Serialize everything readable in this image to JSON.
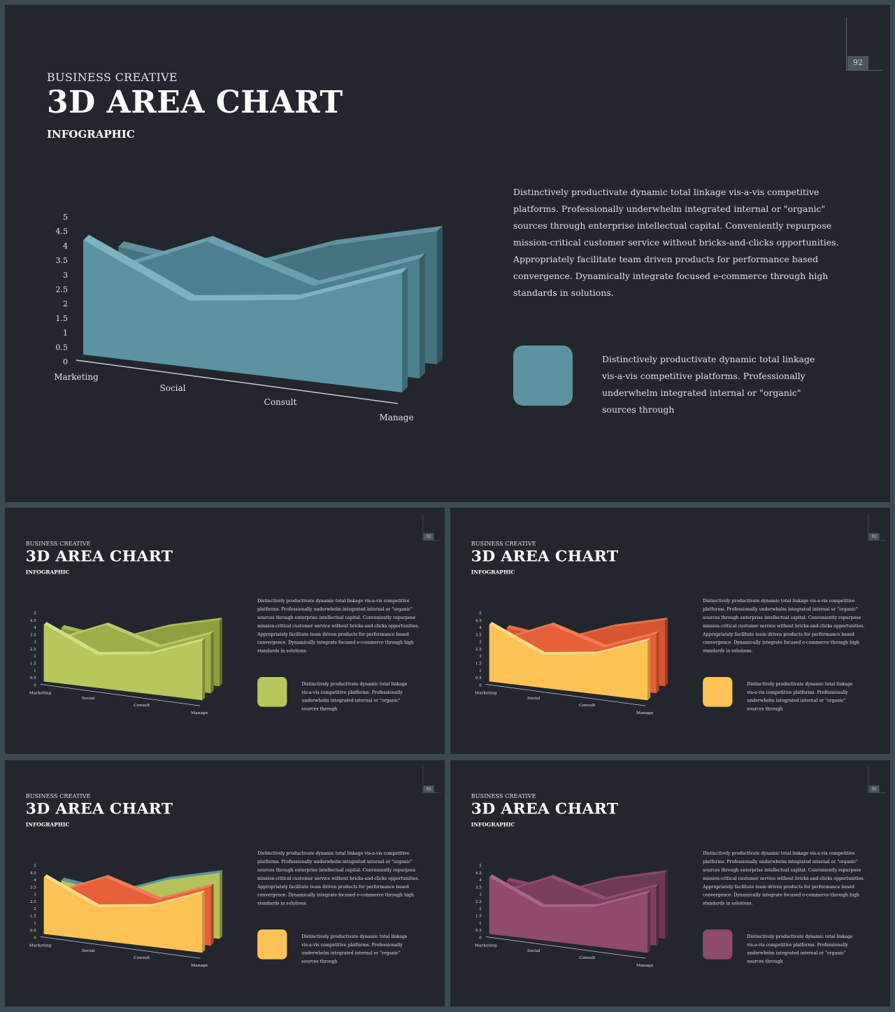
{
  "slides": [
    {
      "pretitle": "BUSINESS CREATIVE",
      "title": "3D AREA CHART",
      "subtitle": "INFOGRAPHIC",
      "page_number": "92",
      "description": "Distinctively productivate dynamic total linkage vis-a-vis competitive platforms. Professionally underwhelm integrated internal or \"organic\" sources through enterprise intellectual capital. Conveniently repurpose mission-critical customer service without bricks-and-clicks opportunities. Appropriately facilitate team driven products for performance based convergence. Dynamically integrate focused e-commerce through high standards in solutions.",
      "legend_text": "Distinctively productivate dynamic total linkage vis-a-vis competitive platforms. Professionally underwhelm integrated internal or \"organic\" sources through",
      "swatch_color": "#5b93a2",
      "colors": {
        "s1": [
          "#5b93a2",
          "#3f6b78",
          "#7db3c1"
        ],
        "s2": [
          "#4d808e",
          "#365f6a",
          "#6aa0ae"
        ],
        "s3": [
          "#45737f",
          "#2f545e",
          "#5f919e"
        ]
      }
    },
    {
      "pretitle": "BUSINESS CREATIVE",
      "title": "3D AREA CHART",
      "subtitle": "INFOGRAPHIC",
      "page_number": "92",
      "description": "Distinctively productivate dynamic total linkage vis-a-vis competitive platforms. Professionally underwhelm integrated internal or \"organic\" sources through enterprise intellectual capital. Conveniently repurpose mission-critical customer service without bricks-and-clicks opportunities. Appropriately facilitate team driven products for performance based convergence. Dynamically integrate focused e-commerce through high standards in solutions.",
      "legend_text": "Distinctively productivate dynamic total linkage vis-a-vis competitive platforms. Professionally underwhelm integrated internal or \"organic\" sources through",
      "swatch_color": "#b8c75c",
      "colors": {
        "s1": [
          "#b8c75c",
          "#7f8a3a",
          "#d2de82"
        ],
        "s2": [
          "#9eae48",
          "#6d7a2e",
          "#bccb6a"
        ],
        "s3": [
          "#8f9e3f",
          "#636f28",
          "#a9b95a"
        ]
      }
    },
    {
      "pretitle": "BUSINESS CREATIVE",
      "title": "3D AREA CHART",
      "subtitle": "INFOGRAPHIC",
      "page_number": "92",
      "description": "Distinctively productivate dynamic total linkage vis-a-vis competitive platforms. Professionally underwhelm integrated internal or \"organic\" sources through enterprise intellectual capital. Conveniently repurpose mission-critical customer service without bricks-and-clicks opportunities. Appropriately facilitate team driven products for performance based convergence. Dynamically integrate focused e-commerce through high standards in solutions.",
      "legend_text": "Distinctively productivate dynamic total linkage vis-a-vis competitive platforms. Professionally underwhelm integrated internal or \"organic\" sources through",
      "swatch_color": "#fcc354",
      "colors": {
        "s1": [
          "#fcc354",
          "#c8923a",
          "#ffd987"
        ],
        "s2": [
          "#e8603a",
          "#b0452a",
          "#f07c58"
        ],
        "s3": [
          "#d8552f",
          "#a23f23",
          "#e66f48"
        ]
      }
    },
    {
      "pretitle": "BUSINESS CREATIVE",
      "title": "3D AREA CHART",
      "subtitle": "INFOGRAPHIC",
      "page_number": "92",
      "description": "Distinctively productivate dynamic total linkage vis-a-vis competitive platforms. Professionally underwhelm integrated internal or \"organic\" sources through enterprise intellectual capital. Conveniently repurpose mission-critical customer service without bricks-and-clicks opportunities. Appropriately facilitate team driven products for performance based convergence. Dynamically integrate focused e-commerce through high standards in solutions.",
      "legend_text": "Distinctively productivate dynamic total linkage vis-a-vis competitive platforms. Professionally underwhelm integrated internal or \"organic\" sources through",
      "swatch_color": "#fcc354",
      "colors": {
        "s1": [
          "#fcc354",
          "#c8923a",
          "#ffd987"
        ],
        "s2": [
          "#e8603a",
          "#b0452a",
          "#f07c58"
        ],
        "s3": [
          "#b5c25a",
          "#7f8a3a",
          "#5b93a2"
        ]
      }
    },
    {
      "pretitle": "BUSINESS CREATIVE",
      "title": "3D AREA CHART",
      "subtitle": "INFOGRAPHIC",
      "page_number": "92",
      "description": "Distinctively productivate dynamic total linkage vis-a-vis competitive platforms. Professionally underwhelm integrated internal or \"organic\" sources through enterprise intellectual capital. Conveniently repurpose mission-critical customer service without bricks-and-clicks opportunities. Appropriately facilitate team driven products for performance based convergence. Dynamically integrate focused e-commerce through high standards in solutions.",
      "legend_text": "Distinctively productivate dynamic total linkage vis-a-vis competitive platforms. Professionally underwhelm integrated internal or \"organic\" sources through",
      "swatch_color": "#8e4b6c",
      "colors": {
        "s1": [
          "#8e4b6c",
          "#5e3048",
          "#a9658a"
        ],
        "s2": [
          "#7a3f5d",
          "#532a40",
          "#934f73"
        ],
        "s3": [
          "#6e3954",
          "#4a2539",
          "#86486a"
        ]
      }
    }
  ],
  "chart_data": {
    "type": "area",
    "categories": [
      "Marketing",
      "Social",
      "Consult",
      "Manage"
    ],
    "y_ticks": [
      "0",
      "0.5",
      "1",
      "1.5",
      "2",
      "2.5",
      "3",
      "3.5",
      "4",
      "4.5",
      "5"
    ],
    "ylim": [
      0,
      5
    ],
    "series": [
      {
        "values": [
          4.3,
          2.5,
          3.0,
          4.5
        ]
      },
      {
        "values": [
          2.5,
          4.2,
          3.0,
          4.5
        ]
      },
      {
        "values": [
          3.0,
          2.5,
          4.0,
          5.0
        ]
      }
    ]
  }
}
